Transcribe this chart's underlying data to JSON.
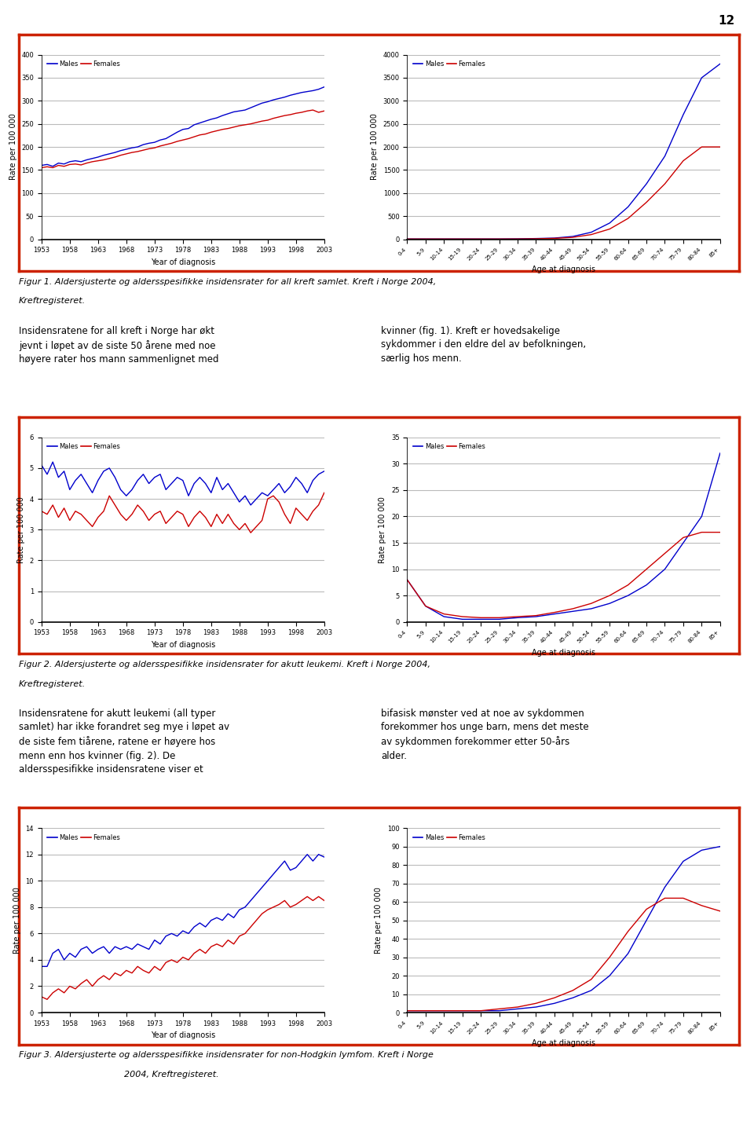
{
  "page_number": "12",
  "age_labels": [
    "0-4",
    "5-9",
    "10-14",
    "15-19",
    "20-24",
    "25-29",
    "30-34",
    "35-39",
    "40-44",
    "45-49",
    "50-54",
    "55-59",
    "60-64",
    "65-69",
    "70-74",
    "75-79",
    "80-84",
    "85+"
  ],
  "years": [
    1953,
    1954,
    1955,
    1956,
    1957,
    1958,
    1959,
    1960,
    1961,
    1962,
    1963,
    1964,
    1965,
    1966,
    1967,
    1968,
    1969,
    1970,
    1971,
    1972,
    1973,
    1974,
    1975,
    1976,
    1977,
    1978,
    1979,
    1980,
    1981,
    1982,
    1983,
    1984,
    1985,
    1986,
    1987,
    1988,
    1989,
    1990,
    1991,
    1992,
    1993,
    1994,
    1995,
    1996,
    1997,
    1998,
    1999,
    2000,
    2001,
    2002,
    2003
  ],
  "fig1_left_males": [
    160,
    162,
    158,
    165,
    163,
    168,
    170,
    168,
    172,
    175,
    178,
    182,
    185,
    188,
    192,
    195,
    198,
    200,
    205,
    208,
    210,
    215,
    218,
    225,
    232,
    238,
    240,
    248,
    252,
    256,
    260,
    263,
    268,
    272,
    276,
    278,
    280,
    285,
    290,
    295,
    298,
    302,
    305,
    308,
    312,
    315,
    318,
    320,
    322,
    325,
    330
  ],
  "fig1_left_females": [
    155,
    157,
    155,
    160,
    158,
    162,
    163,
    161,
    165,
    168,
    170,
    172,
    175,
    178,
    182,
    185,
    188,
    190,
    193,
    196,
    198,
    202,
    205,
    208,
    212,
    215,
    218,
    222,
    226,
    228,
    232,
    235,
    238,
    240,
    243,
    246,
    248,
    250,
    253,
    256,
    258,
    262,
    265,
    268,
    270,
    273,
    275,
    278,
    280,
    275,
    278
  ],
  "fig1_right_males": [
    5,
    5,
    5,
    5,
    5,
    5,
    8,
    15,
    25,
    60,
    150,
    350,
    700,
    1200,
    1800,
    2700,
    3500,
    3800
  ],
  "fig1_right_females": [
    5,
    5,
    5,
    5,
    5,
    5,
    6,
    10,
    18,
    40,
    100,
    220,
    450,
    800,
    1200,
    1700,
    2000,
    2000
  ],
  "fig2_left_males": [
    5.1,
    4.8,
    5.2,
    4.7,
    4.9,
    4.3,
    4.6,
    4.8,
    4.5,
    4.2,
    4.6,
    4.9,
    5.0,
    4.7,
    4.3,
    4.1,
    4.3,
    4.6,
    4.8,
    4.5,
    4.7,
    4.8,
    4.3,
    4.5,
    4.7,
    4.6,
    4.1,
    4.5,
    4.7,
    4.5,
    4.2,
    4.7,
    4.3,
    4.5,
    4.2,
    3.9,
    4.1,
    3.8,
    4.0,
    4.2,
    4.1,
    4.3,
    4.5,
    4.2,
    4.4,
    4.7,
    4.5,
    4.2,
    4.6,
    4.8,
    4.9
  ],
  "fig2_left_females": [
    3.6,
    3.5,
    3.8,
    3.4,
    3.7,
    3.3,
    3.6,
    3.5,
    3.3,
    3.1,
    3.4,
    3.6,
    4.1,
    3.8,
    3.5,
    3.3,
    3.5,
    3.8,
    3.6,
    3.3,
    3.5,
    3.6,
    3.2,
    3.4,
    3.6,
    3.5,
    3.1,
    3.4,
    3.6,
    3.4,
    3.1,
    3.5,
    3.2,
    3.5,
    3.2,
    3.0,
    3.2,
    2.9,
    3.1,
    3.3,
    4.0,
    4.1,
    3.9,
    3.5,
    3.2,
    3.7,
    3.5,
    3.3,
    3.6,
    3.8,
    4.2
  ],
  "fig2_right_males": [
    8.0,
    3.0,
    1.0,
    0.5,
    0.5,
    0.5,
    0.8,
    1.0,
    1.5,
    2.0,
    2.5,
    3.5,
    5.0,
    7.0,
    10.0,
    15.0,
    20.0,
    32.0
  ],
  "fig2_right_females": [
    8.0,
    3.0,
    1.5,
    1.0,
    0.8,
    0.8,
    1.0,
    1.2,
    1.8,
    2.5,
    3.5,
    5.0,
    7.0,
    10.0,
    13.0,
    16.0,
    17.0,
    17.0
  ],
  "fig3_left_males": [
    3.5,
    3.5,
    4.5,
    4.8,
    4.0,
    4.5,
    4.2,
    4.8,
    5.0,
    4.5,
    4.8,
    5.0,
    4.5,
    5.0,
    4.8,
    5.0,
    4.8,
    5.2,
    5.0,
    4.8,
    5.5,
    5.2,
    5.8,
    6.0,
    5.8,
    6.2,
    6.0,
    6.5,
    6.8,
    6.5,
    7.0,
    7.2,
    7.0,
    7.5,
    7.2,
    7.8,
    8.0,
    8.5,
    9.0,
    9.5,
    10.0,
    10.5,
    11.0,
    11.5,
    10.8,
    11.0,
    11.5,
    12.0,
    11.5,
    12.0,
    11.8
  ],
  "fig3_left_females": [
    1.2,
    1.0,
    1.5,
    1.8,
    1.5,
    2.0,
    1.8,
    2.2,
    2.5,
    2.0,
    2.5,
    2.8,
    2.5,
    3.0,
    2.8,
    3.2,
    3.0,
    3.5,
    3.2,
    3.0,
    3.5,
    3.2,
    3.8,
    4.0,
    3.8,
    4.2,
    4.0,
    4.5,
    4.8,
    4.5,
    5.0,
    5.2,
    5.0,
    5.5,
    5.2,
    5.8,
    6.0,
    6.5,
    7.0,
    7.5,
    7.8,
    8.0,
    8.2,
    8.5,
    8.0,
    8.2,
    8.5,
    8.8,
    8.5,
    8.8,
    8.5
  ],
  "fig3_right_males": [
    1,
    1,
    1,
    1,
    1,
    1,
    2,
    3,
    5,
    8,
    12,
    20,
    32,
    50,
    68,
    82,
    88,
    90
  ],
  "fig3_right_females": [
    1,
    1,
    1,
    1,
    1,
    2,
    3,
    5,
    8,
    12,
    18,
    30,
    44,
    56,
    62,
    62,
    58,
    55
  ],
  "box_color": "#cc2200",
  "male_color": "#0000cc",
  "female_color": "#cc0000",
  "grid_color": "#bbbbbb"
}
